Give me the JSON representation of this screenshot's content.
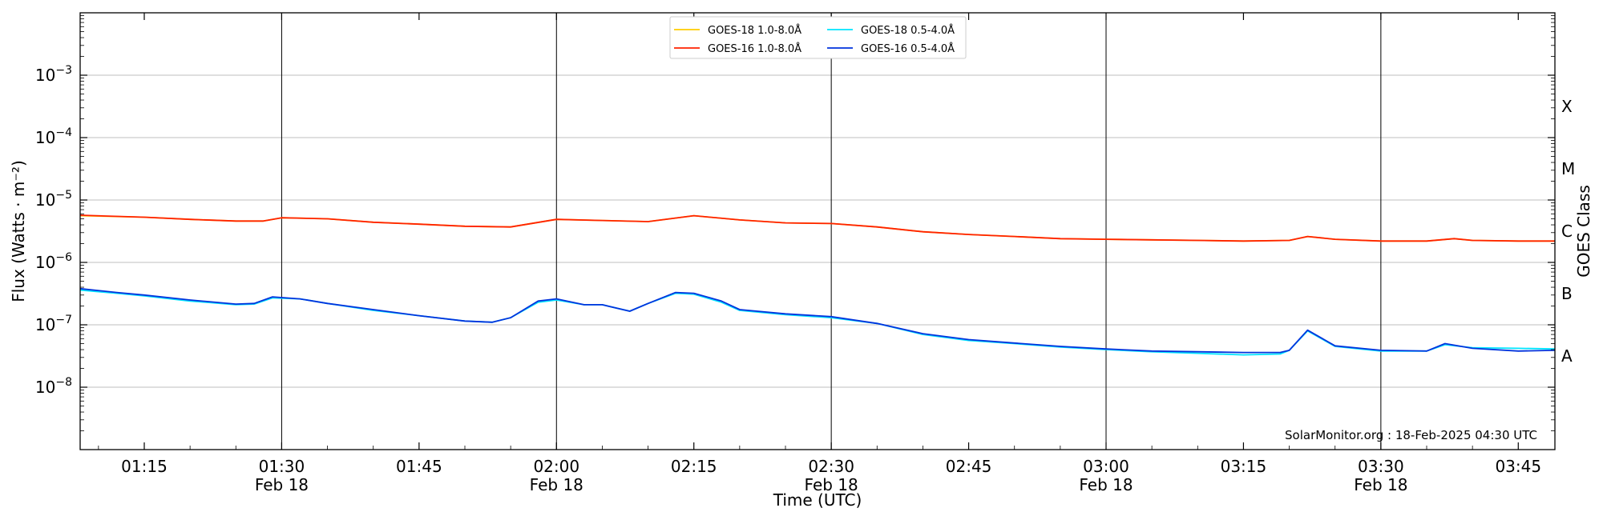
{
  "chart_data": {
    "type": "line",
    "xlabel": "Time (UTC)",
    "ylabel": "Flux (Watts · m⁻²)",
    "y2label": "GOES Class",
    "yscale": "log",
    "ylim": [
      1e-09,
      0.01
    ],
    "xlim": [
      "01:08",
      "03:49"
    ],
    "grid": true,
    "legend_position": "top-center",
    "footer": "SolarMonitor.org : 18-Feb-2025 04:30 UTC",
    "x_ticks": [
      {
        "t": "01:15",
        "label": "01:15",
        "sub": ""
      },
      {
        "t": "01:30",
        "label": "01:30",
        "sub": "Feb 18"
      },
      {
        "t": "01:45",
        "label": "01:45",
        "sub": ""
      },
      {
        "t": "02:00",
        "label": "02:00",
        "sub": "Feb 18"
      },
      {
        "t": "02:15",
        "label": "02:15",
        "sub": ""
      },
      {
        "t": "02:30",
        "label": "02:30",
        "sub": "Feb 18"
      },
      {
        "t": "02:45",
        "label": "02:45",
        "sub": ""
      },
      {
        "t": "03:00",
        "label": "03:00",
        "sub": "Feb 18"
      },
      {
        "t": "03:15",
        "label": "03:15",
        "sub": ""
      },
      {
        "t": "03:30",
        "label": "03:30",
        "sub": "Feb 18"
      },
      {
        "t": "03:45",
        "label": "03:45",
        "sub": ""
      }
    ],
    "y_ticks": [
      {
        "value": 1e-08,
        "label": "10",
        "exp": "−8"
      },
      {
        "value": 1e-07,
        "label": "10",
        "exp": "−7"
      },
      {
        "value": 1e-06,
        "label": "10",
        "exp": "−6"
      },
      {
        "value": 1e-05,
        "label": "10",
        "exp": "−5"
      },
      {
        "value": 0.0001,
        "label": "10",
        "exp": "−4"
      },
      {
        "value": 0.001,
        "label": "10",
        "exp": "−3"
      }
    ],
    "class_labels": [
      {
        "label": "X",
        "value": 0.000316
      },
      {
        "label": "M",
        "value": 3.16e-05
      },
      {
        "label": "C",
        "value": 3.16e-06
      },
      {
        "label": "B",
        "value": 3.16e-07
      },
      {
        "label": "A",
        "value": 3.16e-08
      }
    ],
    "series": [
      {
        "name": "GOES-18 1.0-8.0Å",
        "color": "#ffcc00",
        "points": [
          [
            "01:08",
            5.6e-06
          ],
          [
            "01:15",
            5.3e-06
          ],
          [
            "01:20",
            4.9e-06
          ],
          [
            "01:25",
            4.6e-06
          ],
          [
            "01:28",
            4.6e-06
          ],
          [
            "01:30",
            5.2e-06
          ],
          [
            "01:35",
            5e-06
          ],
          [
            "01:40",
            4.4e-06
          ],
          [
            "01:45",
            4.1e-06
          ],
          [
            "01:50",
            3.8e-06
          ],
          [
            "01:55",
            3.7e-06
          ],
          [
            "02:00",
            4.9e-06
          ],
          [
            "02:05",
            4.7e-06
          ],
          [
            "02:10",
            4.5e-06
          ],
          [
            "02:15",
            5.6e-06
          ],
          [
            "02:20",
            4.8e-06
          ],
          [
            "02:25",
            4.3e-06
          ],
          [
            "02:30",
            4.2e-06
          ],
          [
            "02:35",
            3.7e-06
          ],
          [
            "02:40",
            3.1e-06
          ],
          [
            "02:45",
            2.8e-06
          ],
          [
            "02:50",
            2.6e-06
          ],
          [
            "02:55",
            2.4e-06
          ],
          [
            "03:00",
            2.35e-06
          ],
          [
            "03:05",
            2.3e-06
          ],
          [
            "03:10",
            2.25e-06
          ],
          [
            "03:15",
            2.2e-06
          ],
          [
            "03:20",
            2.25e-06
          ],
          [
            "03:22",
            2.6e-06
          ],
          [
            "03:25",
            2.35e-06
          ],
          [
            "03:30",
            2.2e-06
          ],
          [
            "03:35",
            2.2e-06
          ],
          [
            "03:38",
            2.4e-06
          ],
          [
            "03:40",
            2.25e-06
          ],
          [
            "03:45",
            2.2e-06
          ],
          [
            "03:49",
            2.2e-06
          ]
        ]
      },
      {
        "name": "GOES-16 1.0-8.0Å",
        "color": "#ff2200",
        "points": [
          [
            "01:08",
            5.7e-06
          ],
          [
            "01:15",
            5.3e-06
          ],
          [
            "01:20",
            4.9e-06
          ],
          [
            "01:25",
            4.6e-06
          ],
          [
            "01:28",
            4.6e-06
          ],
          [
            "01:30",
            5.2e-06
          ],
          [
            "01:35",
            5e-06
          ],
          [
            "01:40",
            4.4e-06
          ],
          [
            "01:45",
            4.1e-06
          ],
          [
            "01:50",
            3.8e-06
          ],
          [
            "01:55",
            3.7e-06
          ],
          [
            "02:00",
            4.9e-06
          ],
          [
            "02:05",
            4.7e-06
          ],
          [
            "02:10",
            4.5e-06
          ],
          [
            "02:15",
            5.6e-06
          ],
          [
            "02:20",
            4.8e-06
          ],
          [
            "02:25",
            4.3e-06
          ],
          [
            "02:30",
            4.2e-06
          ],
          [
            "02:35",
            3.7e-06
          ],
          [
            "02:40",
            3.1e-06
          ],
          [
            "02:45",
            2.8e-06
          ],
          [
            "02:50",
            2.6e-06
          ],
          [
            "02:55",
            2.4e-06
          ],
          [
            "03:00",
            2.35e-06
          ],
          [
            "03:05",
            2.3e-06
          ],
          [
            "03:10",
            2.25e-06
          ],
          [
            "03:15",
            2.2e-06
          ],
          [
            "03:20",
            2.25e-06
          ],
          [
            "03:22",
            2.6e-06
          ],
          [
            "03:25",
            2.35e-06
          ],
          [
            "03:30",
            2.2e-06
          ],
          [
            "03:35",
            2.2e-06
          ],
          [
            "03:38",
            2.4e-06
          ],
          [
            "03:40",
            2.25e-06
          ],
          [
            "03:45",
            2.2e-06
          ],
          [
            "03:49",
            2.2e-06
          ]
        ]
      },
      {
        "name": "GOES-18 0.5-4.0Å",
        "color": "#00e5ff",
        "points": [
          [
            "01:08",
            3.6e-07
          ],
          [
            "01:12",
            3.2e-07
          ],
          [
            "01:15",
            2.9e-07
          ],
          [
            "01:20",
            2.4e-07
          ],
          [
            "01:25",
            2.1e-07
          ],
          [
            "01:27",
            2.15e-07
          ],
          [
            "01:29",
            2.7e-07
          ],
          [
            "01:32",
            2.6e-07
          ],
          [
            "01:35",
            2.2e-07
          ],
          [
            "01:40",
            1.7e-07
          ],
          [
            "01:45",
            1.4e-07
          ],
          [
            "01:50",
            1.15e-07
          ],
          [
            "01:53",
            1.1e-07
          ],
          [
            "01:55",
            1.3e-07
          ],
          [
            "01:58",
            2.3e-07
          ],
          [
            "02:00",
            2.5e-07
          ],
          [
            "02:03",
            2.1e-07
          ],
          [
            "02:05",
            2.1e-07
          ],
          [
            "02:08",
            1.65e-07
          ],
          [
            "02:10",
            2.2e-07
          ],
          [
            "02:13",
            3.2e-07
          ],
          [
            "02:15",
            3.1e-07
          ],
          [
            "02:18",
            2.3e-07
          ],
          [
            "02:20",
            1.7e-07
          ],
          [
            "02:25",
            1.45e-07
          ],
          [
            "02:30",
            1.3e-07
          ],
          [
            "02:35",
            1.05e-07
          ],
          [
            "02:40",
            7e-08
          ],
          [
            "02:45",
            5.6e-08
          ],
          [
            "02:50",
            5e-08
          ],
          [
            "02:55",
            4.4e-08
          ],
          [
            "03:00",
            4e-08
          ],
          [
            "03:05",
            3.7e-08
          ],
          [
            "03:10",
            3.5e-08
          ],
          [
            "03:15",
            3.3e-08
          ],
          [
            "03:19",
            3.4e-08
          ],
          [
            "03:20",
            3.9e-08
          ],
          [
            "03:22",
            8e-08
          ],
          [
            "03:25",
            4.5e-08
          ],
          [
            "03:30",
            3.8e-08
          ],
          [
            "03:35",
            3.8e-08
          ],
          [
            "03:37",
            4.8e-08
          ],
          [
            "03:40",
            4.3e-08
          ],
          [
            "03:45",
            4.2e-08
          ],
          [
            "03:49",
            4.1e-08
          ]
        ]
      },
      {
        "name": "GOES-16 0.5-4.0Å",
        "color": "#0033dd",
        "points": [
          [
            "01:08",
            3.8e-07
          ],
          [
            "01:12",
            3.3e-07
          ],
          [
            "01:15",
            3e-07
          ],
          [
            "01:20",
            2.5e-07
          ],
          [
            "01:25",
            2.15e-07
          ],
          [
            "01:27",
            2.2e-07
          ],
          [
            "01:29",
            2.8e-07
          ],
          [
            "01:32",
            2.6e-07
          ],
          [
            "01:35",
            2.2e-07
          ],
          [
            "01:40",
            1.75e-07
          ],
          [
            "01:45",
            1.4e-07
          ],
          [
            "01:50",
            1.15e-07
          ],
          [
            "01:53",
            1.1e-07
          ],
          [
            "01:55",
            1.3e-07
          ],
          [
            "01:58",
            2.4e-07
          ],
          [
            "02:00",
            2.6e-07
          ],
          [
            "02:03",
            2.1e-07
          ],
          [
            "02:05",
            2.1e-07
          ],
          [
            "02:08",
            1.65e-07
          ],
          [
            "02:10",
            2.2e-07
          ],
          [
            "02:13",
            3.3e-07
          ],
          [
            "02:15",
            3.2e-07
          ],
          [
            "02:18",
            2.4e-07
          ],
          [
            "02:20",
            1.75e-07
          ],
          [
            "02:25",
            1.5e-07
          ],
          [
            "02:30",
            1.35e-07
          ],
          [
            "02:35",
            1.05e-07
          ],
          [
            "02:40",
            7.2e-08
          ],
          [
            "02:45",
            5.8e-08
          ],
          [
            "02:50",
            5.1e-08
          ],
          [
            "02:55",
            4.5e-08
          ],
          [
            "03:00",
            4.1e-08
          ],
          [
            "03:05",
            3.8e-08
          ],
          [
            "03:10",
            3.7e-08
          ],
          [
            "03:15",
            3.6e-08
          ],
          [
            "03:19",
            3.6e-08
          ],
          [
            "03:20",
            3.9e-08
          ],
          [
            "03:22",
            8.2e-08
          ],
          [
            "03:25",
            4.6e-08
          ],
          [
            "03:30",
            3.9e-08
          ],
          [
            "03:35",
            3.8e-08
          ],
          [
            "03:37",
            5e-08
          ],
          [
            "03:40",
            4.2e-08
          ],
          [
            "03:45",
            3.8e-08
          ],
          [
            "03:49",
            3.9e-08
          ]
        ]
      }
    ]
  }
}
